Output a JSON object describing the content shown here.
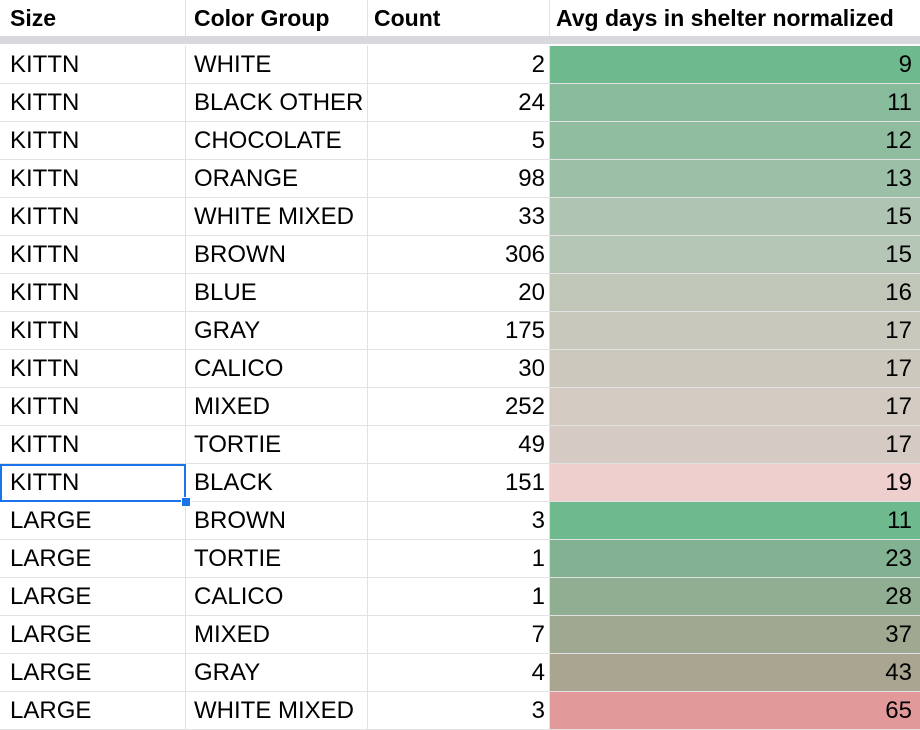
{
  "headers": {
    "size": "Size",
    "color_group": "Color Group",
    "count": "Count",
    "avg": "Avg days in shelter normalized"
  },
  "rows": [
    {
      "size": "KITTN",
      "color": "WHITE",
      "count": "2",
      "avg": "9",
      "bg": "#6fb98e"
    },
    {
      "size": "KITTN",
      "color": "BLACK OTHER",
      "count": "24",
      "avg": "11",
      "bg": "#87bb9b"
    },
    {
      "size": "KITTN",
      "color": "CHOCOLATE",
      "count": "5",
      "avg": "12",
      "bg": "#90bd9f"
    },
    {
      "size": "KITTN",
      "color": "ORANGE",
      "count": "98",
      "avg": "13",
      "bg": "#9bbfa7"
    },
    {
      "size": "KITTN",
      "color": "WHITE MIXED",
      "count": "33",
      "avg": "15",
      "bg": "#afc4b3"
    },
    {
      "size": "KITTN",
      "color": "BROWN",
      "count": "306",
      "avg": "15",
      "bg": "#b5c6b6"
    },
    {
      "size": "KITTN",
      "color": "BLUE",
      "count": "20",
      "avg": "16",
      "bg": "#c0c7b9"
    },
    {
      "size": "KITTN",
      "color": "GRAY",
      "count": "175",
      "avg": "17",
      "bg": "#c9c8bd"
    },
    {
      "size": "KITTN",
      "color": "CALICO",
      "count": "30",
      "avg": "17",
      "bg": "#cdc8be"
    },
    {
      "size": "KITTN",
      "color": "MIXED",
      "count": "252",
      "avg": "17",
      "bg": "#d3cac2"
    },
    {
      "size": "KITTN",
      "color": "TORTIE",
      "count": "49",
      "avg": "17",
      "bg": "#d6cbc4"
    },
    {
      "size": "KITTN",
      "color": "BLACK",
      "count": "151",
      "avg": "19",
      "bg": "#efcece"
    },
    {
      "size": "LARGE",
      "color": "BROWN",
      "count": "3",
      "avg": "11",
      "bg": "#6fb98e"
    },
    {
      "size": "LARGE",
      "color": "TORTIE",
      "count": "1",
      "avg": "23",
      "bg": "#83b293"
    },
    {
      "size": "LARGE",
      "color": "CALICO",
      "count": "1",
      "avg": "28",
      "bg": "#8fae92"
    },
    {
      "size": "LARGE",
      "color": "MIXED",
      "count": "7",
      "avg": "37",
      "bg": "#9fa890"
    },
    {
      "size": "LARGE",
      "color": "GRAY",
      "count": "4",
      "avg": "43",
      "bg": "#a9a591"
    },
    {
      "size": "LARGE",
      "color": "WHITE MIXED",
      "count": "3",
      "avg": "65",
      "bg": "#e19a99"
    }
  ],
  "selection": {
    "row": 11,
    "column": "size"
  },
  "colors": {
    "selection": "#1a73e8",
    "gridline": "#e2e2e2",
    "frozen_divider": "#d7d9dc"
  }
}
